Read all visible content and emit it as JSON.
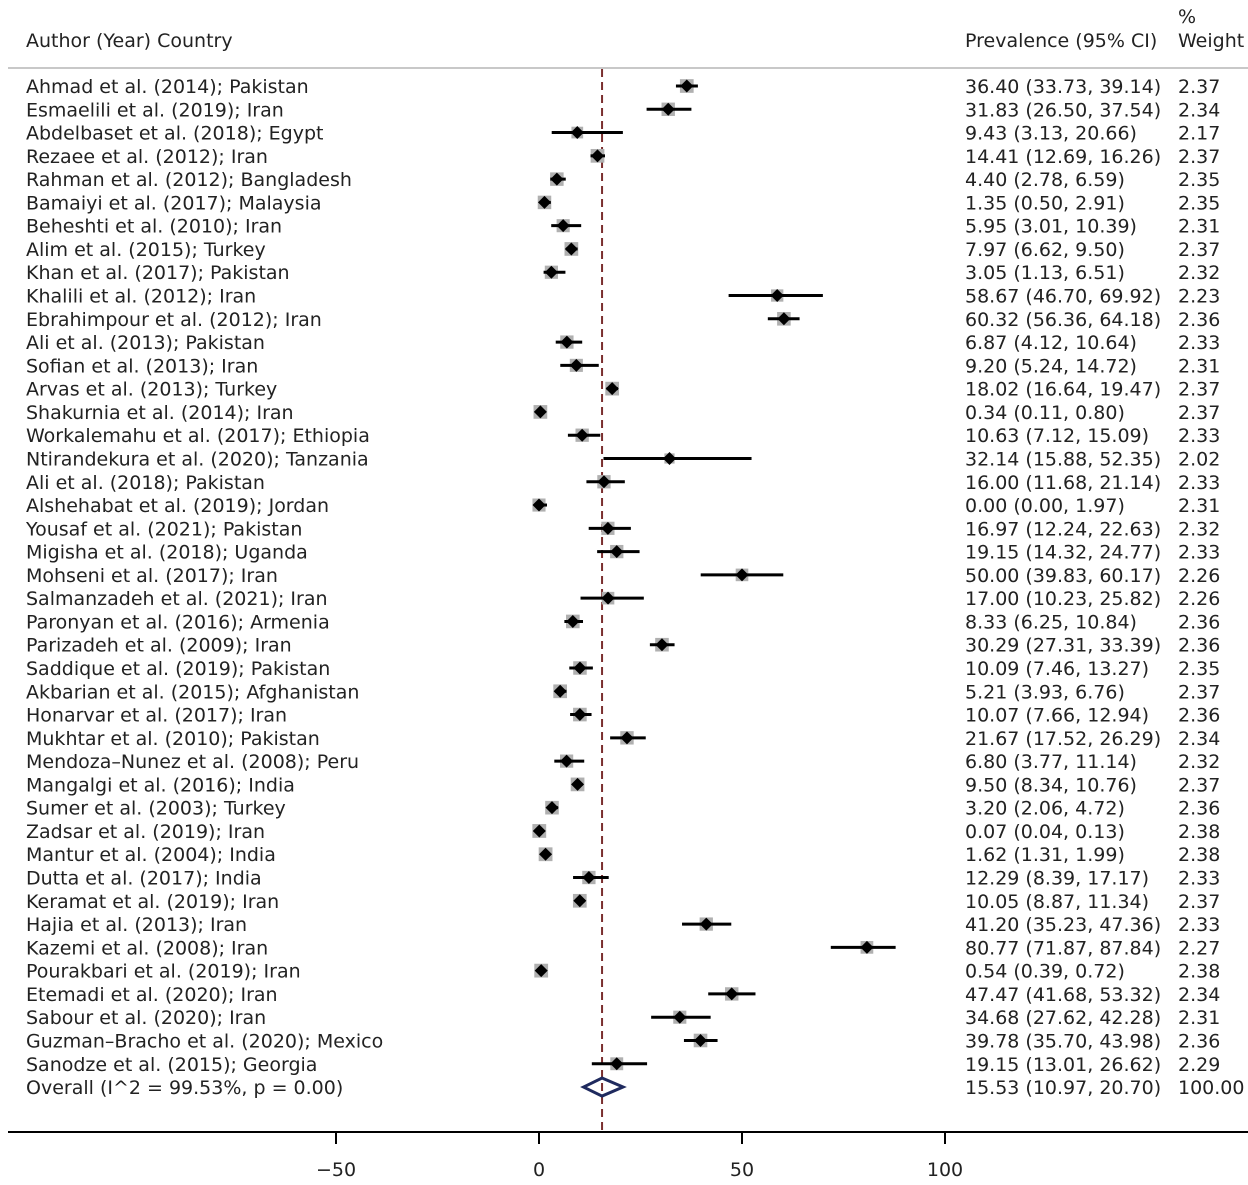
{
  "chart_data": {
    "type": "forest",
    "headers": {
      "study": "Author (Year) Country",
      "estimate": "Prevalence (95% CI)",
      "weight_line1": "%",
      "weight_line2": "Weight"
    },
    "x_ticks": [
      {
        "value": -50,
        "label": "−50"
      },
      {
        "value": 0,
        "label": "0"
      },
      {
        "value": 50,
        "label": "50"
      },
      {
        "value": 100,
        "label": "100"
      }
    ],
    "xlim": [
      -130,
      175
    ],
    "reference_line": 15.53,
    "studies": [
      {
        "label": "Ahmad et al. (2014); Pakistan",
        "est": 36.4,
        "lo": 33.73,
        "hi": 39.14,
        "ci_text": "36.40 (33.73, 39.14)",
        "weight": "2.37"
      },
      {
        "label": "Esmaelili et al. (2019); Iran",
        "est": 31.83,
        "lo": 26.5,
        "hi": 37.54,
        "ci_text": "31.83 (26.50, 37.54)",
        "weight": "2.34"
      },
      {
        "label": "Abdelbaset et al. (2018); Egypt",
        "est": 9.43,
        "lo": 3.13,
        "hi": 20.66,
        "ci_text": "9.43 (3.13, 20.66)",
        "weight": "2.17"
      },
      {
        "label": "Rezaee et al. (2012); Iran",
        "est": 14.41,
        "lo": 12.69,
        "hi": 16.26,
        "ci_text": "14.41 (12.69, 16.26)",
        "weight": "2.37"
      },
      {
        "label": "Rahman et al. (2012); Bangladesh",
        "est": 4.4,
        "lo": 2.78,
        "hi": 6.59,
        "ci_text": "4.40 (2.78, 6.59)",
        "weight": "2.35"
      },
      {
        "label": "Bamaiyi et al. (2017); Malaysia",
        "est": 1.35,
        "lo": 0.5,
        "hi": 2.91,
        "ci_text": "1.35 (0.50, 2.91)",
        "weight": "2.35"
      },
      {
        "label": "Beheshti et al. (2010); Iran",
        "est": 5.95,
        "lo": 3.01,
        "hi": 10.39,
        "ci_text": "5.95 (3.01, 10.39)",
        "weight": "2.31"
      },
      {
        "label": "Alim et al. (2015); Turkey",
        "est": 7.97,
        "lo": 6.62,
        "hi": 9.5,
        "ci_text": "7.97 (6.62, 9.50)",
        "weight": "2.37"
      },
      {
        "label": "Khan et al. (2017); Pakistan",
        "est": 3.05,
        "lo": 1.13,
        "hi": 6.51,
        "ci_text": "3.05 (1.13, 6.51)",
        "weight": "2.32"
      },
      {
        "label": "Khalili et al. (2012); Iran",
        "est": 58.67,
        "lo": 46.7,
        "hi": 69.92,
        "ci_text": "58.67 (46.70, 69.92)",
        "weight": "2.23"
      },
      {
        "label": "Ebrahimpour et al. (2012); Iran",
        "est": 60.32,
        "lo": 56.36,
        "hi": 64.18,
        "ci_text": "60.32 (56.36, 64.18)",
        "weight": "2.36"
      },
      {
        "label": "Ali et al. (2013); Pakistan",
        "est": 6.87,
        "lo": 4.12,
        "hi": 10.64,
        "ci_text": "6.87 (4.12, 10.64)",
        "weight": "2.33"
      },
      {
        "label": "Sofian et al. (2013); Iran",
        "est": 9.2,
        "lo": 5.24,
        "hi": 14.72,
        "ci_text": "9.20 (5.24, 14.72)",
        "weight": "2.31"
      },
      {
        "label": "Arvas et al. (2013); Turkey",
        "est": 18.02,
        "lo": 16.64,
        "hi": 19.47,
        "ci_text": "18.02 (16.64, 19.47)",
        "weight": "2.37"
      },
      {
        "label": "Shakurnia et al. (2014); Iran",
        "est": 0.34,
        "lo": 0.11,
        "hi": 0.8,
        "ci_text": "0.34 (0.11, 0.80)",
        "weight": "2.37"
      },
      {
        "label": "Workalemahu et al. (2017); Ethiopia",
        "est": 10.63,
        "lo": 7.12,
        "hi": 15.09,
        "ci_text": "10.63 (7.12, 15.09)",
        "weight": "2.33"
      },
      {
        "label": "Ntirandekura et al. (2020); Tanzania",
        "est": 32.14,
        "lo": 15.88,
        "hi": 52.35,
        "ci_text": "32.14 (15.88, 52.35)",
        "weight": "2.02"
      },
      {
        "label": "Ali et al. (2018); Pakistan",
        "est": 16.0,
        "lo": 11.68,
        "hi": 21.14,
        "ci_text": "16.00 (11.68, 21.14)",
        "weight": "2.33"
      },
      {
        "label": "Alshehabat et al. (2019); Jordan",
        "est": 0.0,
        "lo": 0.0,
        "hi": 1.97,
        "ci_text": "0.00 (0.00, 1.97)",
        "weight": "2.31"
      },
      {
        "label": "Yousaf et al. (2021); Pakistan",
        "est": 16.97,
        "lo": 12.24,
        "hi": 22.63,
        "ci_text": "16.97 (12.24, 22.63)",
        "weight": "2.32"
      },
      {
        "label": "Migisha et al. (2018); Uganda",
        "est": 19.15,
        "lo": 14.32,
        "hi": 24.77,
        "ci_text": "19.15 (14.32, 24.77)",
        "weight": "2.33"
      },
      {
        "label": "Mohseni et al. (2017); Iran",
        "est": 50.0,
        "lo": 39.83,
        "hi": 60.17,
        "ci_text": "50.00 (39.83, 60.17)",
        "weight": "2.26"
      },
      {
        "label": "Salmanzadeh et al. (2021); Iran",
        "est": 17.0,
        "lo": 10.23,
        "hi": 25.82,
        "ci_text": "17.00 (10.23, 25.82)",
        "weight": "2.26"
      },
      {
        "label": "Paronyan et al. (2016); Armenia",
        "est": 8.33,
        "lo": 6.25,
        "hi": 10.84,
        "ci_text": "8.33 (6.25, 10.84)",
        "weight": "2.36"
      },
      {
        "label": "Parizadeh et al. (2009); Iran",
        "est": 30.29,
        "lo": 27.31,
        "hi": 33.39,
        "ci_text": "30.29 (27.31, 33.39)",
        "weight": "2.36"
      },
      {
        "label": "Saddique et al. (2019); Pakistan",
        "est": 10.09,
        "lo": 7.46,
        "hi": 13.27,
        "ci_text": "10.09 (7.46, 13.27)",
        "weight": "2.35"
      },
      {
        "label": "Akbarian et al. (2015); Afghanistan",
        "est": 5.21,
        "lo": 3.93,
        "hi": 6.76,
        "ci_text": "5.21 (3.93, 6.76)",
        "weight": "2.37"
      },
      {
        "label": "Honarvar et al. (2017); Iran",
        "est": 10.07,
        "lo": 7.66,
        "hi": 12.94,
        "ci_text": "10.07 (7.66, 12.94)",
        "weight": "2.36"
      },
      {
        "label": "Mukhtar et al. (2010); Pakistan",
        "est": 21.67,
        "lo": 17.52,
        "hi": 26.29,
        "ci_text": "21.67 (17.52, 26.29)",
        "weight": "2.34"
      },
      {
        "label": "Mendoza–Nunez  et al. (2008); Peru",
        "est": 6.8,
        "lo": 3.77,
        "hi": 11.14,
        "ci_text": "6.80 (3.77, 11.14)",
        "weight": "2.32"
      },
      {
        "label": "Mangalgi et al. (2016); India",
        "est": 9.5,
        "lo": 8.34,
        "hi": 10.76,
        "ci_text": "9.50 (8.34, 10.76)",
        "weight": "2.37"
      },
      {
        "label": "Sumer et al. (2003); Turkey",
        "est": 3.2,
        "lo": 2.06,
        "hi": 4.72,
        "ci_text": "3.20 (2.06, 4.72)",
        "weight": "2.36"
      },
      {
        "label": "Zadsar et al. (2019); Iran",
        "est": 0.07,
        "lo": 0.04,
        "hi": 0.13,
        "ci_text": "0.07 (0.04, 0.13)",
        "weight": "2.38"
      },
      {
        "label": "Mantur et al. (2004); India",
        "est": 1.62,
        "lo": 1.31,
        "hi": 1.99,
        "ci_text": "1.62 (1.31, 1.99)",
        "weight": "2.38"
      },
      {
        "label": "Dutta et al. (2017); India",
        "est": 12.29,
        "lo": 8.39,
        "hi": 17.17,
        "ci_text": "12.29 (8.39, 17.17)",
        "weight": "2.33"
      },
      {
        "label": "Keramat et al. (2019); Iran",
        "est": 10.05,
        "lo": 8.87,
        "hi": 11.34,
        "ci_text": "10.05 (8.87, 11.34)",
        "weight": "2.37"
      },
      {
        "label": "Hajia  et al. (2013); Iran",
        "est": 41.2,
        "lo": 35.23,
        "hi": 47.36,
        "ci_text": "41.20 (35.23, 47.36)",
        "weight": "2.33"
      },
      {
        "label": "Kazemi  et al. (2008); Iran",
        "est": 80.77,
        "lo": 71.87,
        "hi": 87.84,
        "ci_text": "80.77 (71.87, 87.84)",
        "weight": "2.27"
      },
      {
        "label": "Pourakbari  et al. (2019); Iran",
        "est": 0.54,
        "lo": 0.39,
        "hi": 0.72,
        "ci_text": "0.54 (0.39, 0.72)",
        "weight": "2.38"
      },
      {
        "label": "Etemadi  et al. (2020); Iran",
        "est": 47.47,
        "lo": 41.68,
        "hi": 53.32,
        "ci_text": "47.47 (41.68, 53.32)",
        "weight": "2.34"
      },
      {
        "label": "Sabour et al. (2020); Iran",
        "est": 34.68,
        "lo": 27.62,
        "hi": 42.28,
        "ci_text": "34.68 (27.62, 42.28)",
        "weight": "2.31"
      },
      {
        "label": "Guzman–Bracho  et al. (2020); Mexico",
        "est": 39.78,
        "lo": 35.7,
        "hi": 43.98,
        "ci_text": "39.78 (35.70, 43.98)",
        "weight": "2.36"
      },
      {
        "label": "Sanodze et al. (2015); Georgia",
        "est": 19.15,
        "lo": 13.01,
        "hi": 26.62,
        "ci_text": "19.15 (13.01, 26.62)",
        "weight": "2.29"
      }
    ],
    "overall": {
      "label": "Overall  (I^2 = 99.53%, p = 0.00)",
      "est": 15.53,
      "lo": 10.97,
      "hi": 20.7,
      "ci_text": "15.53 (10.97, 20.70)",
      "weight": "100.00"
    },
    "colors": {
      "marker": "#000000",
      "weight_box": "#b0b0b0",
      "reference_line": "#7a2e2e",
      "overall_diamond": "#1f2a5e",
      "divider": "#c8c8c8",
      "axis": "#000000"
    }
  }
}
